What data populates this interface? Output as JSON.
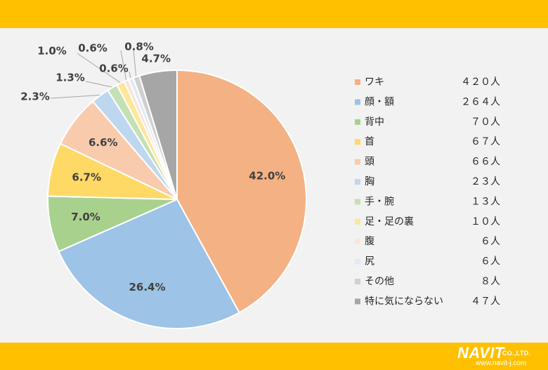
{
  "chart_data": {
    "type": "pie",
    "title": "",
    "unit": "人",
    "categories": [
      "ワキ",
      "顔・額",
      "背中",
      "首",
      "頭",
      "胸",
      "手・腕",
      "足・足の裏",
      "腹",
      "尻",
      "その他",
      "特に気にならない"
    ],
    "values": [
      420,
      264,
      70,
      67,
      66,
      23,
      13,
      10,
      6,
      6,
      8,
      47
    ],
    "value_labels": [
      "４２０人",
      "２６４人",
      "７０人",
      "６７人",
      "６６人",
      "２３人",
      "１３人",
      "１０人",
      "６人",
      "６人",
      "８人",
      "４７人"
    ],
    "percent_labels": [
      "42.0%",
      "26.4%",
      "7.0%",
      "6.7%",
      "6.6%",
      "2.3%",
      "1.3%",
      "1.0%",
      "0.6%",
      "0.6%",
      "0.8%",
      "4.7%"
    ],
    "colors": [
      "#F4B183",
      "#9DC3E6",
      "#A9D18E",
      "#FFD966",
      "#F8CBAD",
      "#BDD7EE",
      "#C5E0B4",
      "#FFE699",
      "#FBE5D6",
      "#DEEBF7",
      "#D0D0D0",
      "#A6A6A6"
    ],
    "start_angle": "12 o'clock",
    "direction": "clockwise",
    "legend_position": "right"
  },
  "brand": {
    "band_color": "#FFC000",
    "name": "NAVIT",
    "suffix": "CO.,LTD.",
    "url": "www.navit-j.com"
  }
}
